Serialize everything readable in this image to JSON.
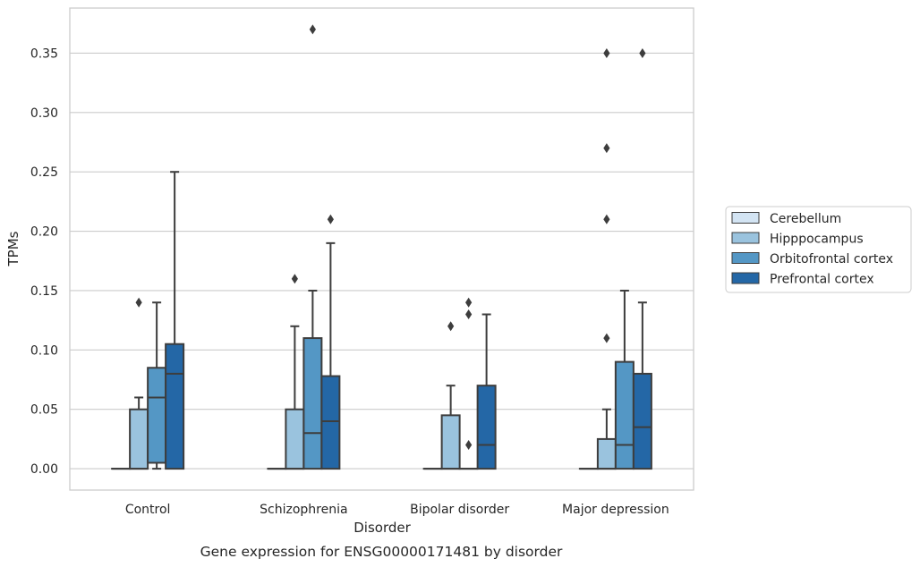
{
  "chart_data": {
    "type": "box",
    "ylabel": "TPMs",
    "xlabel": "Disorder",
    "caption": "Gene expression for ENSG00000171481 by disorder",
    "ylim": [
      -0.018,
      0.388
    ],
    "yticks": [
      "0.00",
      "0.05",
      "0.10",
      "0.15",
      "0.20",
      "0.25",
      "0.30",
      "0.35"
    ],
    "grid": true,
    "legend_position": "right",
    "categories": [
      "Control",
      "Schizophrenia",
      "Bipolar disorder",
      "Major depression"
    ],
    "series": [
      {
        "name": "Cerebellum",
        "color": "#d3e4f3",
        "boxes": [
          {
            "min": 0,
            "q1": 0,
            "median": 0,
            "q3": 0,
            "max": 0,
            "outliers": []
          },
          {
            "min": 0,
            "q1": 0,
            "median": 0,
            "q3": 0,
            "max": 0,
            "outliers": []
          },
          {
            "min": 0,
            "q1": 0,
            "median": 0,
            "q3": 0,
            "max": 0,
            "outliers": []
          },
          {
            "min": 0,
            "q1": 0,
            "median": 0,
            "q3": 0,
            "max": 0,
            "outliers": []
          }
        ]
      },
      {
        "name": "Hipppocampus",
        "color": "#9ac3de",
        "boxes": [
          {
            "min": 0,
            "q1": 0,
            "median": 0,
            "q3": 0.05,
            "max": 0.06,
            "outliers": [
              0.14
            ]
          },
          {
            "min": 0,
            "q1": 0,
            "median": 0,
            "q3": 0.05,
            "max": 0.12,
            "outliers": [
              0.16
            ]
          },
          {
            "min": 0,
            "q1": 0,
            "median": 0,
            "q3": 0.045,
            "max": 0.07,
            "outliers": [
              0.12
            ]
          },
          {
            "min": 0,
            "q1": 0,
            "median": 0,
            "q3": 0.025,
            "max": 0.05,
            "outliers": [
              0.11,
              0.21,
              0.27,
              0.35
            ]
          }
        ]
      },
      {
        "name": "Orbitofrontal cortex",
        "color": "#5497c5",
        "boxes": [
          {
            "min": 0,
            "q1": 0.005,
            "median": 0.06,
            "q3": 0.085,
            "max": 0.14,
            "outliers": []
          },
          {
            "min": 0,
            "q1": 0,
            "median": 0.03,
            "q3": 0.11,
            "max": 0.15,
            "outliers": [
              0.37
            ]
          },
          {
            "min": 0,
            "q1": 0,
            "median": 0,
            "q3": 0,
            "max": 0,
            "outliers": [
              0.02,
              0.13,
              0.14
            ]
          },
          {
            "min": 0,
            "q1": 0,
            "median": 0.02,
            "q3": 0.09,
            "max": 0.15,
            "outliers": []
          }
        ]
      },
      {
        "name": "Prefrontal cortex",
        "color": "#2467a6",
        "boxes": [
          {
            "min": 0,
            "q1": 0,
            "median": 0.08,
            "q3": 0.105,
            "max": 0.25,
            "outliers": []
          },
          {
            "min": 0,
            "q1": 0,
            "median": 0.04,
            "q3": 0.078,
            "max": 0.19,
            "outliers": [
              0.21
            ]
          },
          {
            "min": 0,
            "q1": 0,
            "median": 0.02,
            "q3": 0.07,
            "max": 0.13,
            "outliers": []
          },
          {
            "min": 0,
            "q1": 0,
            "median": 0.035,
            "q3": 0.08,
            "max": 0.14,
            "outliers": [
              0.35
            ]
          }
        ]
      }
    ]
  }
}
